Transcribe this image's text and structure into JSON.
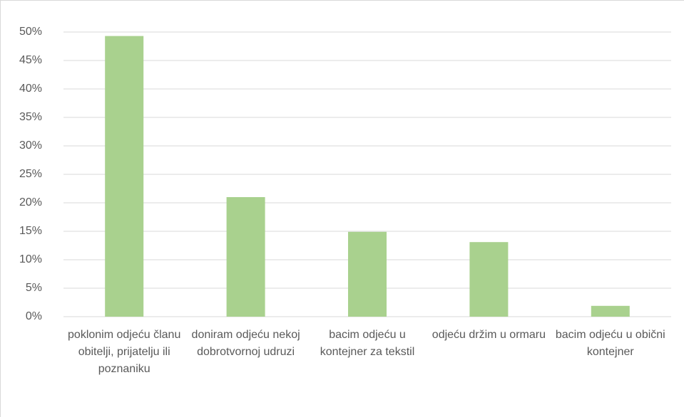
{
  "chart_data": {
    "type": "bar",
    "categories": [
      "poklonim odjeću članu obitelji, prijatelju ili poznaniku",
      "doniram odjeću nekoj dobrotvornoj udruzi",
      "bacim odjeću u kontejner za tekstil",
      "odjeću držim u ormaru",
      "bacim odjeću u obični kontejner"
    ],
    "values": [
      49.3,
      21,
      14.9,
      13.1,
      1.9
    ],
    "color": "#a9d18e",
    "ylim": [
      0,
      50
    ],
    "yticks": [
      {
        "value": 0,
        "label": "0%"
      },
      {
        "value": 5,
        "label": "5%"
      },
      {
        "value": 10,
        "label": "10%"
      },
      {
        "value": 15,
        "label": "15%"
      },
      {
        "value": 20,
        "label": "20%"
      },
      {
        "value": 25,
        "label": "25%"
      },
      {
        "value": 30,
        "label": "30%"
      },
      {
        "value": 35,
        "label": "35%"
      },
      {
        "value": 40,
        "label": "40%"
      },
      {
        "value": 45,
        "label": "45%"
      },
      {
        "value": 50,
        "label": "50%"
      }
    ],
    "grid": true
  }
}
